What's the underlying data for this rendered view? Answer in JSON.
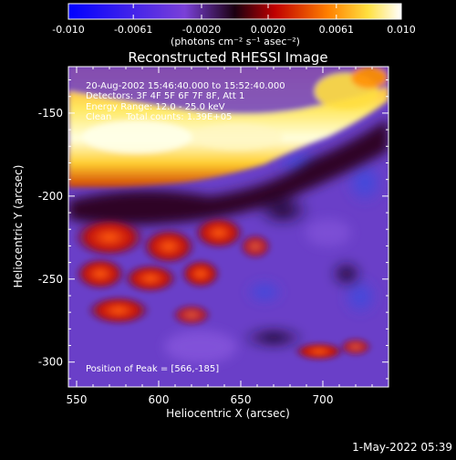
{
  "colorbar": {
    "ticks": [
      "-0.010",
      "-0.0061",
      "-0.0020",
      "0.0020",
      "0.0061",
      "0.010"
    ],
    "units": "(photons cm⁻² s⁻¹ asec⁻²)",
    "range": [
      -0.01,
      0.01
    ]
  },
  "title": "Reconstructed RHESSI Image",
  "info": {
    "line1": "20-Aug-2002 15:46:40.000 to 15:52:40.000",
    "line2": "Detectors: 3F 4F 5F 6F 7F 8F, Att 1",
    "line3": "Energy Range: 12.0 - 25.0 keV",
    "line4": "Clean     Total counts: 1.39E+05"
  },
  "peak_label": "Position of Peak = [566,-185]",
  "timestamp": "1-May-2022 05:39",
  "chart_data": {
    "type": "heatmap",
    "title": "Reconstructed RHESSI Image",
    "xlabel": "Heliocentric X (arcsec)",
    "ylabel": "Heliocentric Y (arcsec)",
    "xlim": [
      545,
      740
    ],
    "ylim": [
      -315,
      -122
    ],
    "xticks": [
      550,
      600,
      650,
      700
    ],
    "yticks": [
      -150,
      -200,
      -250,
      -300
    ],
    "peak": [
      566,
      -185
    ],
    "colorscale": [
      "#0000ff",
      "#6a3fd0",
      "#3a0a2a",
      "#ff3300",
      "#ff9900",
      "#ffff66",
      "#ffffff"
    ]
  }
}
